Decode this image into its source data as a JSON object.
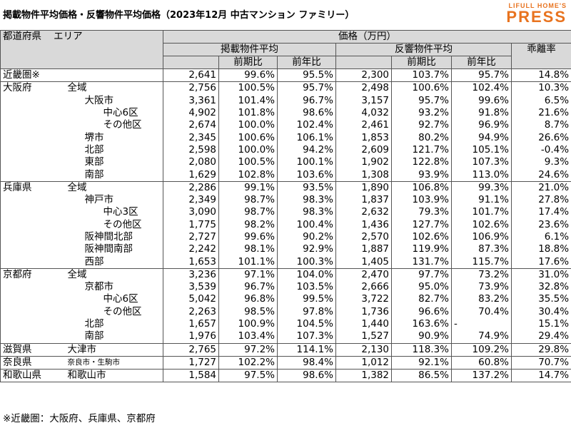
{
  "header": {
    "title": "掲載物件平均価格・反響物件平均価格（2023年12月 中古マンション ファミリー）",
    "logo_top": "LIFULL HOME'S",
    "logo_bottom": "PRESS"
  },
  "table": {
    "header": {
      "pref": "都道府県",
      "area": "エリア",
      "price": "価格（万円）",
      "listed": "掲載物件平均",
      "response": "反響物件平均",
      "ratio": "乖離率",
      "sub": [
        "前期比",
        "前年比",
        "前期比",
        "前年比"
      ]
    },
    "rows": [
      {
        "pref": "近畿圏※",
        "cells": [
          "2,641",
          "99.6%",
          "95.5%",
          "2,300",
          "103.7%",
          "95.7%",
          "14.8%"
        ]
      },
      {
        "pref": "大阪府",
        "area": "全域",
        "cells": [
          "2,756",
          "100.5%",
          "95.7%",
          "2,498",
          "100.6%",
          "102.4%",
          "10.3%"
        ]
      },
      {
        "area": "大阪市",
        "cells": [
          "3,361",
          "101.4%",
          "96.7%",
          "3,157",
          "95.7%",
          "99.6%",
          "6.5%"
        ]
      },
      {
        "area": "中心6区",
        "cells": [
          "4,902",
          "101.8%",
          "98.6%",
          "4,032",
          "93.2%",
          "91.8%",
          "21.6%"
        ]
      },
      {
        "area": "その他区",
        "cells": [
          "2,674",
          "100.0%",
          "102.4%",
          "2,461",
          "92.7%",
          "96.9%",
          "8.7%"
        ]
      },
      {
        "area": "堺市",
        "cells": [
          "2,345",
          "100.6%",
          "106.1%",
          "1,853",
          "80.2%",
          "94.9%",
          "26.6%"
        ]
      },
      {
        "area": "北部",
        "cells": [
          "2,598",
          "100.0%",
          "94.2%",
          "2,609",
          "121.7%",
          "105.1%",
          "-0.4%"
        ]
      },
      {
        "area": "東部",
        "cells": [
          "2,080",
          "100.5%",
          "100.1%",
          "1,902",
          "122.8%",
          "107.3%",
          "9.3%"
        ]
      },
      {
        "area": "南部",
        "cells": [
          "1,629",
          "102.8%",
          "103.6%",
          "1,308",
          "93.9%",
          "113.0%",
          "24.6%"
        ]
      },
      {
        "pref": "兵庫県",
        "area": "全域",
        "cells": [
          "2,286",
          "99.1%",
          "93.5%",
          "1,890",
          "106.8%",
          "99.3%",
          "21.0%"
        ]
      },
      {
        "area": "神戸市",
        "cells": [
          "2,349",
          "98.7%",
          "98.3%",
          "1,837",
          "103.9%",
          "91.1%",
          "27.8%"
        ]
      },
      {
        "area": "中心3区",
        "cells": [
          "3,090",
          "98.7%",
          "98.3%",
          "2,632",
          "79.3%",
          "101.7%",
          "17.4%"
        ]
      },
      {
        "area": "その他区",
        "cells": [
          "1,775",
          "98.2%",
          "100.4%",
          "1,436",
          "127.7%",
          "102.6%",
          "23.6%"
        ]
      },
      {
        "area": "阪神間北部",
        "cells": [
          "2,727",
          "99.6%",
          "90.2%",
          "2,570",
          "102.6%",
          "106.9%",
          "6.1%"
        ]
      },
      {
        "area": "阪神間南部",
        "cells": [
          "2,242",
          "98.1%",
          "92.9%",
          "1,887",
          "119.9%",
          "87.3%",
          "18.8%"
        ]
      },
      {
        "area": "西部",
        "cells": [
          "1,653",
          "101.1%",
          "100.3%",
          "1,405",
          "131.7%",
          "115.7%",
          "17.6%"
        ]
      },
      {
        "pref": "京都府",
        "area": "全域",
        "cells": [
          "3,236",
          "97.1%",
          "104.0%",
          "2,470",
          "97.7%",
          "73.2%",
          "31.0%"
        ]
      },
      {
        "area": "京都市",
        "cells": [
          "3,539",
          "96.7%",
          "103.5%",
          "2,666",
          "95.0%",
          "73.9%",
          "32.8%"
        ]
      },
      {
        "area": "中心6区",
        "cells": [
          "5,042",
          "96.8%",
          "99.5%",
          "3,722",
          "82.7%",
          "83.2%",
          "35.5%"
        ]
      },
      {
        "area": "その他区",
        "cells": [
          "2,263",
          "98.5%",
          "97.8%",
          "1,736",
          "96.6%",
          "70.4%",
          "30.4%"
        ]
      },
      {
        "area": "北部",
        "cells": [
          "1,657",
          "100.9%",
          "104.5%",
          "1,440",
          "163.6%",
          "-",
          "15.1%"
        ]
      },
      {
        "area": "南部",
        "cells": [
          "1,976",
          "103.4%",
          "107.3%",
          "1,527",
          "90.9%",
          "74.9%",
          "29.4%"
        ]
      },
      {
        "pref": "滋賀県",
        "area": "大津市",
        "cells": [
          "2,765",
          "97.2%",
          "114.1%",
          "2,130",
          "118.3%",
          "109.2%",
          "29.8%"
        ]
      },
      {
        "pref": "奈良県",
        "area": "奈良市・生駒市",
        "cells": [
          "1,727",
          "102.2%",
          "98.4%",
          "1,012",
          "92.1%",
          "60.8%",
          "70.7%"
        ]
      },
      {
        "pref": "和歌山県",
        "area": "和歌山市",
        "cells": [
          "1,584",
          "97.5%",
          "98.6%",
          "1,382",
          "86.5%",
          "137.2%",
          "14.7%"
        ]
      }
    ]
  },
  "footnote": "※近畿圏：大阪府、兵庫県、京都府"
}
